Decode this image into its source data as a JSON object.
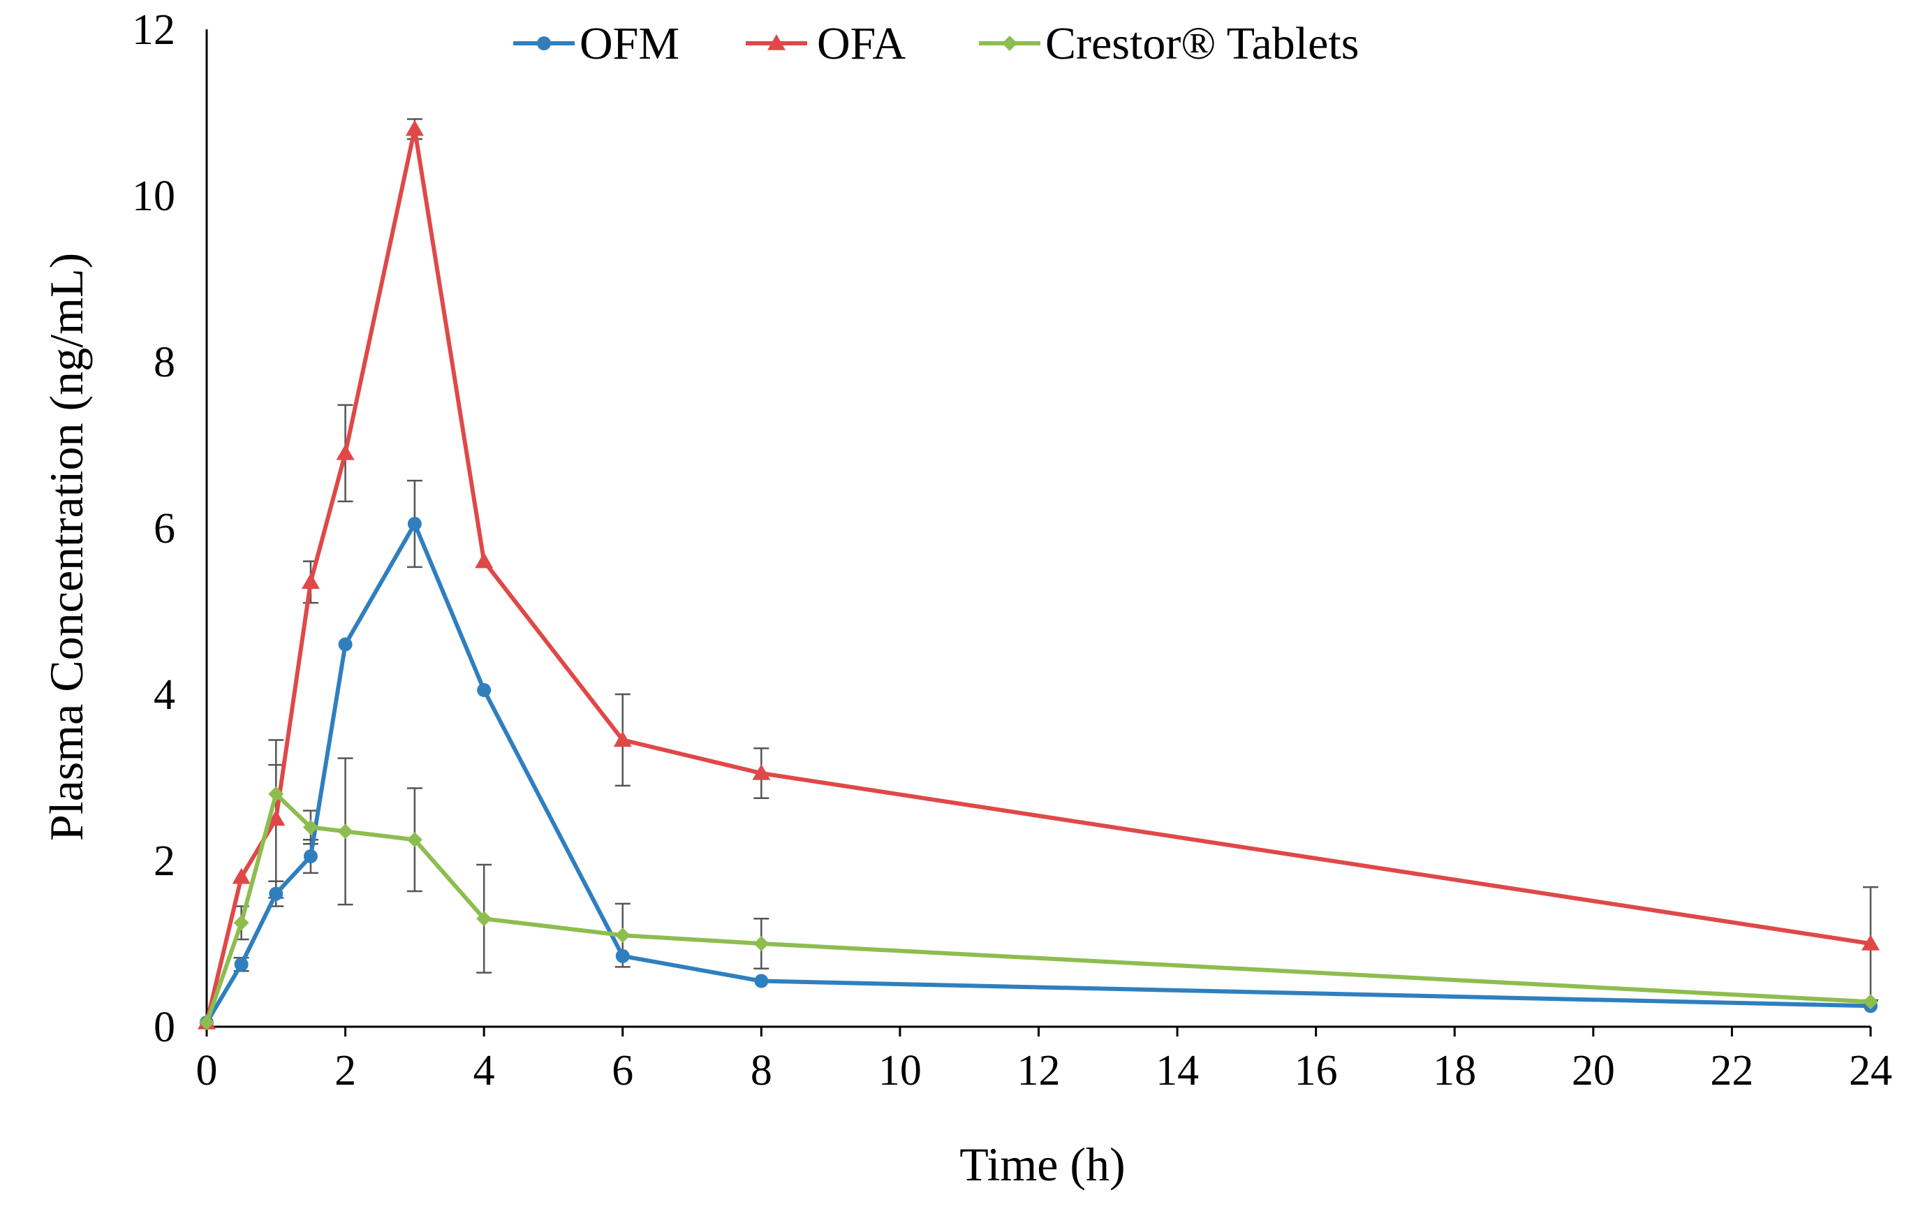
{
  "chart_data": {
    "type": "line",
    "title": "",
    "xlabel": "Time (h)",
    "ylabel": "Plasma Concentration (ng/mL)",
    "xlim": [
      0,
      24
    ],
    "ylim": [
      0,
      12
    ],
    "xticks": [
      0,
      2,
      4,
      6,
      8,
      10,
      12,
      14,
      16,
      18,
      20,
      22,
      24
    ],
    "yticks": [
      0,
      2,
      4,
      6,
      8,
      10,
      12
    ],
    "grid": false,
    "legend_position": "top-center",
    "series": [
      {
        "name": "OFM",
        "color": "#2f7fbf",
        "marker": "circle",
        "x": [
          0,
          0.5,
          1,
          1.5,
          2,
          3,
          4,
          6,
          8,
          24
        ],
        "y": [
          0.05,
          0.75,
          1.6,
          2.05,
          4.6,
          6.05,
          4.05,
          0.85,
          0.55,
          0.25
        ],
        "err": [
          0,
          0.08,
          0.15,
          0.2,
          0,
          0.52,
          0,
          0,
          0,
          0
        ]
      },
      {
        "name": "OFA",
        "color": "#e04848",
        "marker": "triangle",
        "x": [
          0,
          0.5,
          1,
          1.5,
          2,
          3,
          4,
          6,
          8,
          24
        ],
        "y": [
          0.05,
          1.8,
          2.5,
          5.35,
          6.9,
          10.8,
          5.6,
          3.45,
          3.05,
          1.0
        ],
        "err": [
          0,
          0,
          0.95,
          0.25,
          0.58,
          0.12,
          0,
          0.55,
          0.3,
          0.68
        ]
      },
      {
        "name": "Crestor® Tablets",
        "color": "#8dbd4f",
        "marker": "diamond",
        "x": [
          0,
          0.5,
          1,
          1.5,
          2,
          3,
          4,
          6,
          8,
          24
        ],
        "y": [
          0.05,
          1.25,
          2.8,
          2.4,
          2.35,
          2.25,
          1.3,
          1.1,
          1.0,
          0.3
        ],
        "err": [
          0,
          0.2,
          0.35,
          0.2,
          0.88,
          0.62,
          0.65,
          0.38,
          0.3,
          0
        ]
      }
    ]
  }
}
